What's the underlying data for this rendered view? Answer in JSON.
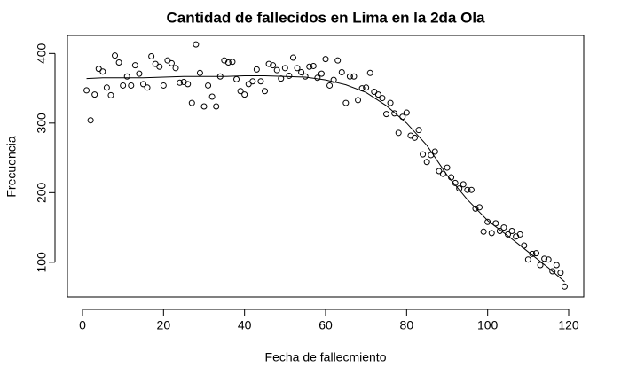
{
  "chart_data": {
    "type": "scatter",
    "title": "Cantidad de fallecidos en Lima en la 2da Ola",
    "x_label": "Fecha de fallecmiento",
    "y_label": "Frecuencia",
    "series": [
      {
        "type": "scatter",
        "color": "#000000",
        "x": [
          1,
          2,
          3,
          4,
          5,
          6,
          7,
          8,
          9,
          10,
          11,
          12,
          13,
          14,
          15,
          16,
          17,
          18,
          19,
          20,
          21,
          22,
          23,
          24,
          25,
          26,
          27,
          28,
          29,
          30,
          31,
          32,
          33,
          34,
          35,
          36,
          37,
          38,
          39,
          40,
          41,
          42,
          43,
          44,
          45,
          46,
          47,
          48,
          49,
          50,
          51,
          52,
          53,
          54,
          55,
          56,
          57,
          58,
          59,
          60,
          61,
          62,
          63,
          64,
          65,
          66,
          67,
          68,
          69,
          70,
          71,
          72,
          73,
          74,
          75,
          76,
          77,
          78,
          79,
          80,
          81,
          82,
          83,
          84,
          85,
          86,
          87,
          88,
          89,
          90,
          91,
          92,
          93,
          94,
          95,
          96,
          97,
          98,
          99,
          100,
          101,
          102,
          103,
          104,
          105,
          106,
          107,
          108,
          109,
          110,
          111,
          112,
          113,
          114,
          115,
          116,
          117,
          118,
          119
        ],
        "values": [
          347,
          304,
          341,
          378,
          374,
          351,
          340,
          397,
          387,
          354,
          367,
          354,
          383,
          371,
          356,
          351,
          396,
          385,
          381,
          354,
          390,
          386,
          379,
          358,
          359,
          356,
          329,
          413,
          372,
          324,
          354,
          338,
          324,
          367,
          390,
          387,
          388,
          363,
          346,
          341,
          356,
          360,
          377,
          360,
          346,
          385,
          383,
          376,
          364,
          379,
          368,
          394,
          379,
          373,
          367,
          381,
          382,
          365,
          371,
          392,
          354,
          362,
          390,
          373,
          329,
          367,
          367,
          333,
          350,
          351,
          372,
          345,
          341,
          336,
          313,
          329,
          314,
          286,
          309,
          315,
          282,
          279,
          290,
          255,
          244,
          254,
          259,
          231,
          227,
          236,
          222,
          214,
          206,
          212,
          204,
          204,
          177,
          179,
          144,
          158,
          142,
          156,
          145,
          150,
          140,
          145,
          137,
          140,
          124,
          104,
          112,
          113,
          96,
          105,
          104,
          87,
          96,
          85,
          65
        ]
      },
      {
        "type": "line",
        "color": "#000000",
        "x": [
          1,
          5,
          10,
          15,
          20,
          25,
          30,
          35,
          40,
          45,
          50,
          55,
          60,
          65,
          70,
          75,
          80,
          85,
          90,
          95,
          100,
          105,
          110,
          115,
          119
        ],
        "values": [
          364,
          365,
          365,
          365,
          366,
          367,
          367,
          367,
          368,
          368,
          367,
          366,
          362,
          355,
          344,
          325,
          300,
          268,
          225,
          190,
          160,
          138,
          115,
          92,
          72
        ]
      }
    ],
    "xlim": [
      -3.72,
      123.72
    ],
    "ylim": [
      50.1,
      425.9
    ],
    "xticks": [
      0,
      20,
      40,
      60,
      80,
      100,
      120
    ],
    "yticks": [
      100,
      200,
      300,
      400
    ]
  }
}
